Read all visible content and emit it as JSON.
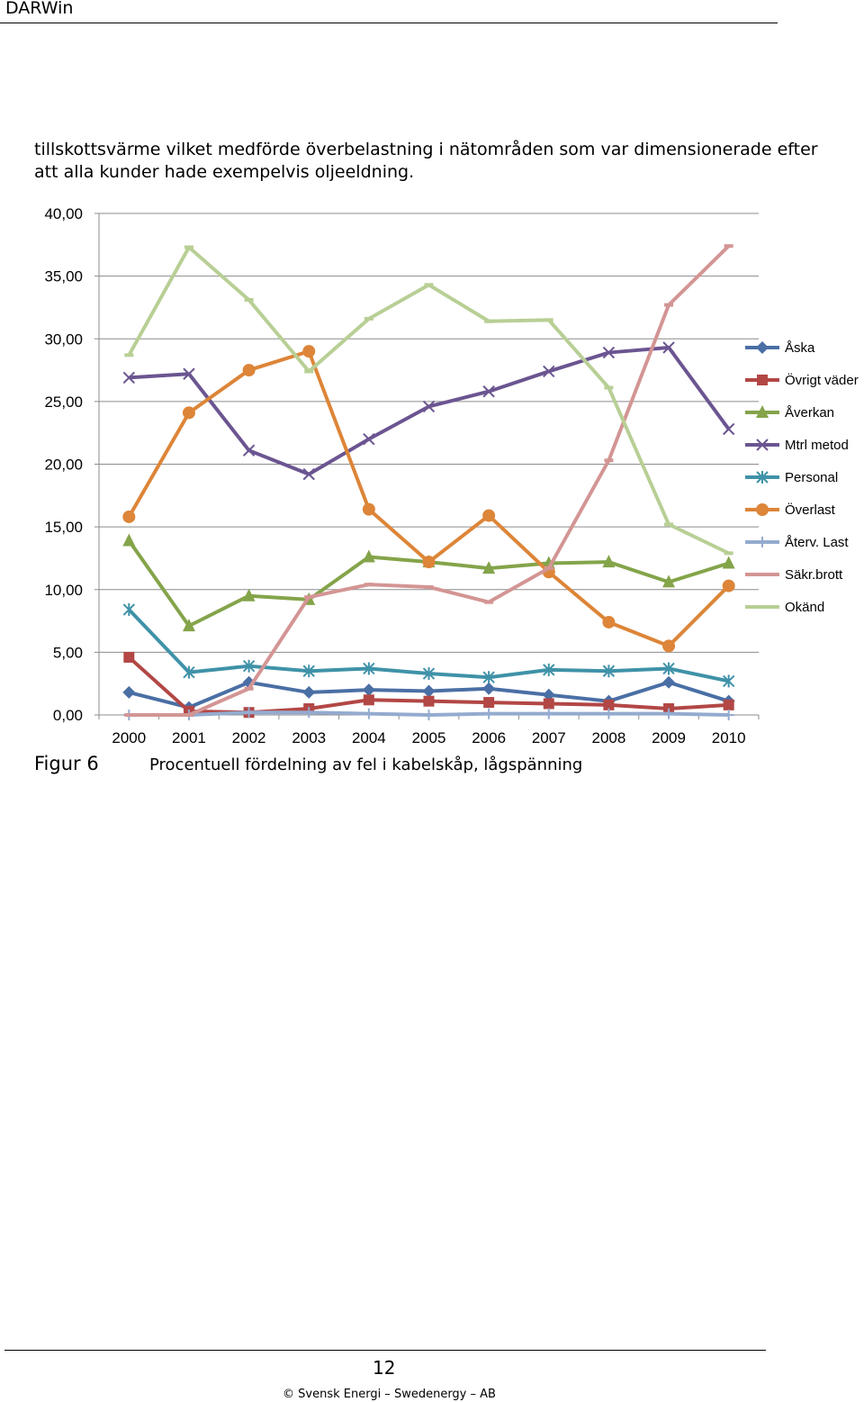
{
  "header": {
    "title": "DARWin"
  },
  "body_text": {
    "line1": "tillskottsvärme vilket medförde överbelastning i nätområden som var dimensionerade efter",
    "line2": "att alla kunder hade exempelvis oljeeldning."
  },
  "figure": {
    "label": "Figur 6",
    "caption": "Procentuell fördelning av fel i kabelskåp, lågspänning"
  },
  "chart_data": {
    "type": "line",
    "title": "",
    "xlabel": "",
    "ylabel": "",
    "categories": [
      "2000",
      "2001",
      "2002",
      "2003",
      "2004",
      "2005",
      "2006",
      "2007",
      "2008",
      "2009",
      "2010"
    ],
    "ylim": [
      0,
      40
    ],
    "yticks": [
      "0,00",
      "5,00",
      "10,00",
      "15,00",
      "20,00",
      "25,00",
      "30,00",
      "35,00",
      "40,00"
    ],
    "grid": true,
    "legend_position": "right",
    "series": [
      {
        "name": "Åska",
        "color": "#4a6fa5",
        "marker": "diamond",
        "values": [
          1.8,
          0.6,
          2.6,
          1.8,
          2.0,
          1.9,
          2.1,
          1.6,
          1.1,
          2.6,
          1.1
        ]
      },
      {
        "name": "Övrigt väder",
        "color": "#b24745",
        "marker": "square",
        "values": [
          4.6,
          0.3,
          0.2,
          0.5,
          1.2,
          1.1,
          1.0,
          0.9,
          0.8,
          0.5,
          0.8
        ]
      },
      {
        "name": "Åverkan",
        "color": "#84a44a",
        "marker": "triangle",
        "values": [
          13.9,
          7.1,
          9.5,
          9.2,
          12.6,
          12.2,
          11.7,
          12.1,
          12.2,
          10.6,
          12.1
        ]
      },
      {
        "name": "Mtrl metod",
        "color": "#6b5591",
        "marker": "x",
        "values": [
          26.9,
          27.2,
          21.1,
          19.2,
          22.0,
          24.6,
          25.8,
          27.4,
          28.9,
          29.3,
          22.8
        ]
      },
      {
        "name": "Personal",
        "color": "#3f92a8",
        "marker": "star",
        "values": [
          8.4,
          3.4,
          3.9,
          3.5,
          3.7,
          3.3,
          3.0,
          3.6,
          3.5,
          3.7,
          2.7
        ]
      },
      {
        "name": "Överlast",
        "color": "#dd8538",
        "marker": "circle",
        "values": [
          15.8,
          24.1,
          27.5,
          29.0,
          16.4,
          12.2,
          15.9,
          11.4,
          7.4,
          5.5,
          10.3
        ]
      },
      {
        "name": "Återv. Last",
        "color": "#94abcf",
        "marker": "plus",
        "values": [
          0.0,
          0.0,
          0.2,
          0.2,
          0.1,
          0.0,
          0.1,
          0.1,
          0.1,
          0.1,
          0.0
        ]
      },
      {
        "name": "Säkr.brott",
        "color": "#d39594",
        "marker": "dash",
        "values": [
          0.0,
          0.0,
          2.1,
          9.4,
          10.4,
          10.2,
          9.0,
          11.7,
          20.3,
          32.7,
          37.4
        ]
      },
      {
        "name": "Okänd",
        "color": "#b8cf95",
        "marker": "dash",
        "values": [
          28.7,
          37.3,
          33.1,
          27.4,
          31.6,
          34.3,
          31.4,
          31.5,
          26.1,
          15.2,
          12.9
        ]
      }
    ]
  },
  "footer": {
    "page_number": "12",
    "copyright": "© Svensk Energi – Swedenergy – AB"
  }
}
